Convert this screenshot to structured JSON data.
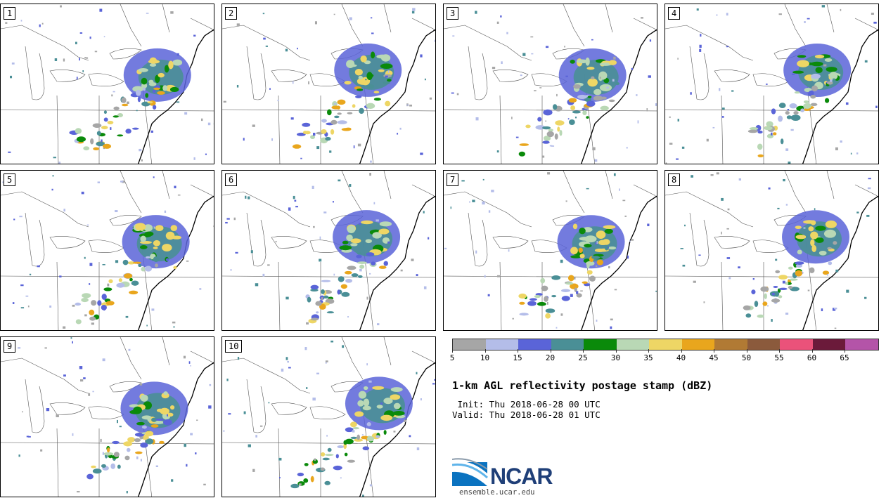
{
  "panels": [
    {
      "label": "1"
    },
    {
      "label": "2"
    },
    {
      "label": "3"
    },
    {
      "label": "4"
    },
    {
      "label": "5"
    },
    {
      "label": "6"
    },
    {
      "label": "7"
    },
    {
      "label": "8"
    },
    {
      "label": "9"
    },
    {
      "label": "10"
    }
  ],
  "colorbar": {
    "unit": "dBZ",
    "ticks": [
      "5",
      "10",
      "15",
      "20",
      "25",
      "30",
      "35",
      "40",
      "45",
      "50",
      "55",
      "60",
      "65"
    ],
    "colors": [
      "#a6a6a6",
      "#b4bde9",
      "#5a64d8",
      "#4a8f96",
      "#0a8a0a",
      "#b9d8b5",
      "#eed665",
      "#e9a61d",
      "#b17a34",
      "#8b5a3c",
      "#ea527a",
      "#6b1a3a",
      "#b454a8"
    ]
  },
  "title": "1-km AGL reflectivity postage stamp (dBZ)",
  "init": " Init: Thu 2018-06-28 00 UTC",
  "valid": "Valid: Thu 2018-06-28 01 UTC",
  "logo": {
    "text": "NCAR",
    "website": "ensemble.ucar.edu",
    "color": "#1f3f78"
  }
}
